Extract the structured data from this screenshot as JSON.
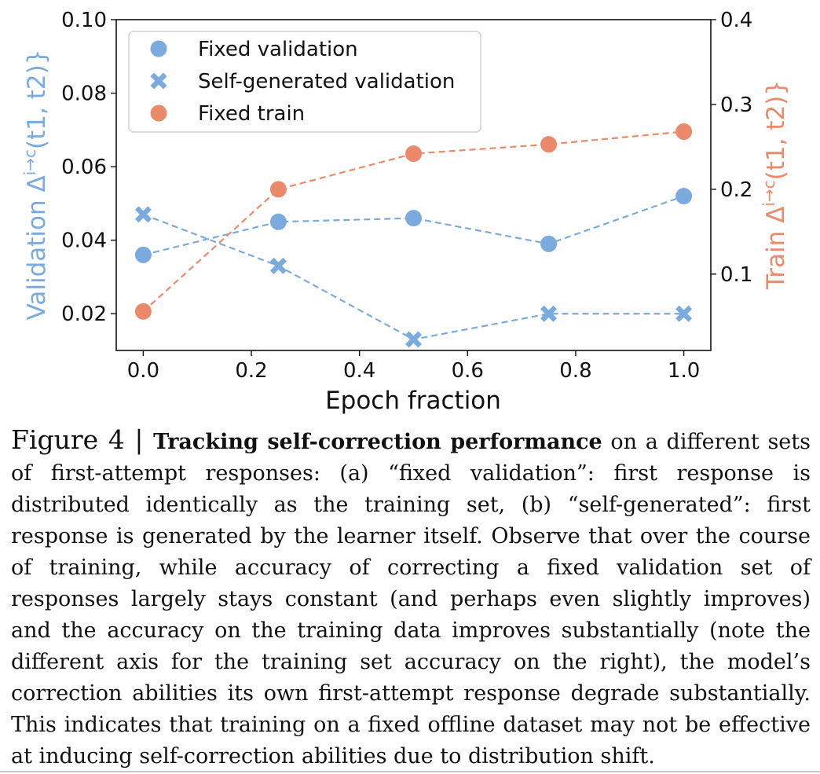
{
  "chart_data": {
    "type": "scatter",
    "xlabel": "Epoch fraction",
    "ylabel_left": "Validation Δ",
    "ylabel_left_sup": "i→c",
    "ylabel_left_suffix": "(t1, t2)}",
    "ylabel_right": "Train Δ",
    "ylabel_right_sup": "i→c",
    "ylabel_right_suffix": "(t1, t2)}",
    "xlim": [
      -0.05,
      1.05
    ],
    "ylim_left": [
      0.01,
      0.1
    ],
    "ylim_right": [
      0.01,
      0.4
    ],
    "x_ticks": [
      "0.0",
      "0.2",
      "0.4",
      "0.6",
      "0.8",
      "1.0"
    ],
    "y_left_ticks": [
      "0.02",
      "0.04",
      "0.06",
      "0.08",
      "0.10"
    ],
    "y_right_ticks": [
      "0.1",
      "0.2",
      "0.3",
      "0.4"
    ],
    "legend_position": "top-left",
    "x": [
      0.0,
      0.25,
      0.5,
      0.75,
      1.0
    ],
    "series": [
      {
        "name": "Fixed validation",
        "axis": "left",
        "marker": "circle",
        "color": "#7aaade",
        "values": [
          0.036,
          0.045,
          0.046,
          0.039,
          0.052
        ]
      },
      {
        "name": "Self-generated validation",
        "axis": "left",
        "marker": "x",
        "color": "#7aaade",
        "values": [
          0.047,
          0.033,
          0.013,
          0.02,
          0.02
        ]
      },
      {
        "name": "Fixed train",
        "axis": "right",
        "marker": "circle",
        "color": "#eb8a6a",
        "values": [
          0.056,
          0.2,
          0.242,
          0.253,
          0.268
        ]
      }
    ]
  },
  "caption": {
    "label": "Figure 4 | ",
    "title": "Tracking self-correction performance",
    "body": " on a different sets of first-attempt responses: (a) “fixed validation”: first response is distributed identically as the training set, (b) “self-generated”: first response is generated by the learner itself. Observe that over the course of training, while accuracy of correcting a fixed validation set of responses largely stays constant (and perhaps even slightly improves) and the accuracy on the training data improves substantially (note the different axis for the training set accuracy on the right), the model’s correction abilities its own first-attempt response degrade substantially. This indicates that training on a fixed offline dataset may not be effective at inducing self-correction abilities due to distribution shift."
  }
}
